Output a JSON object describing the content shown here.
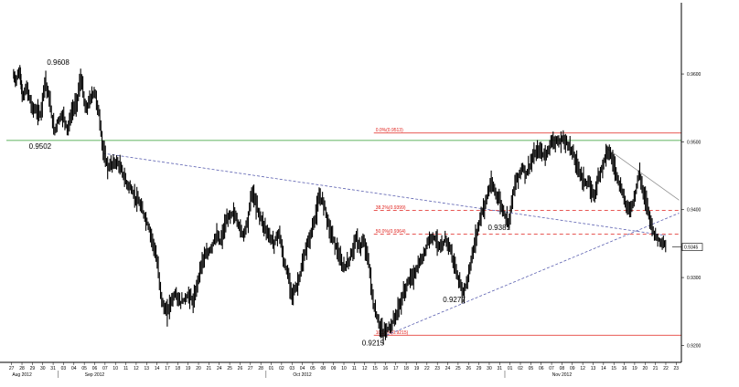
{
  "chart_data": {
    "type": "candlestick",
    "title": "",
    "xlabel": "",
    "ylabel": "",
    "ylim": [
      0.9175,
      0.9705
    ],
    "y_ticks": [
      "0.9200",
      "0.9300",
      "0.9400",
      "0.9500",
      "0.9600"
    ],
    "x_day_labels": [
      "27",
      "28",
      "29",
      "30",
      "31",
      "03",
      "04",
      "05",
      "06",
      "07",
      "10",
      "11",
      "12",
      "13",
      "14",
      "17",
      "18",
      "19",
      "20",
      "21",
      "24",
      "25",
      "26",
      "27",
      "28",
      "01",
      "02",
      "03",
      "04",
      "05",
      "08",
      "09",
      "10",
      "11",
      "12",
      "15",
      "16",
      "17",
      "18",
      "19",
      "22",
      "23",
      "24",
      "25",
      "26",
      "29",
      "30",
      "31",
      "01",
      "02",
      "05",
      "06",
      "07",
      "08",
      "09",
      "12",
      "13",
      "14",
      "15",
      "16",
      "19",
      "20",
      "21",
      "22",
      "23"
    ],
    "x_month_labels": [
      "Aug 2012",
      "Sep 2012",
      "Oct 2012",
      "Nov 2012"
    ],
    "close_path": [
      [
        0.9586,
        0.9598
      ],
      [
        1.5,
        0.9592
      ],
      [
        2.5,
        0.9604
      ],
      [
        3,
        0.9565
      ],
      [
        4,
        0.958
      ],
      [
        5,
        0.9552
      ],
      [
        6,
        0.9545
      ],
      [
        7,
        0.954
      ],
      [
        8,
        0.9592
      ],
      [
        9,
        0.956
      ],
      [
        10,
        0.9515
      ],
      [
        11,
        0.9533
      ],
      [
        12,
        0.954
      ],
      [
        13,
        0.9518
      ],
      [
        14,
        0.9545
      ],
      [
        15,
        0.9558
      ],
      [
        16,
        0.9595
      ],
      [
        17,
        0.9545
      ],
      [
        18,
        0.9563
      ],
      [
        19,
        0.9575
      ],
      [
        20,
        0.954
      ],
      [
        21,
        0.9483
      ],
      [
        22,
        0.9462
      ],
      [
        23,
        0.9468
      ],
      [
        24,
        0.947
      ],
      [
        25,
        0.9458
      ],
      [
        26,
        0.944
      ],
      [
        27,
        0.9432
      ],
      [
        28,
        0.9418
      ],
      [
        29,
        0.9408
      ],
      [
        30,
        0.9392
      ],
      [
        31,
        0.9375
      ],
      [
        32,
        0.9352
      ],
      [
        33,
        0.9318
      ],
      [
        34,
        0.9263
      ],
      [
        35,
        0.9247
      ],
      [
        36,
        0.9265
      ],
      [
        37,
        0.9277
      ],
      [
        38,
        0.9262
      ],
      [
        39,
        0.9268
      ],
      [
        40,
        0.9275
      ],
      [
        41,
        0.9262
      ],
      [
        42,
        0.9298
      ],
      [
        43,
        0.9327
      ],
      [
        44,
        0.9333
      ],
      [
        45,
        0.9345
      ],
      [
        46,
        0.9362
      ],
      [
        47,
        0.9352
      ],
      [
        48,
        0.9377
      ],
      [
        49,
        0.9392
      ],
      [
        50,
        0.9395
      ],
      [
        51,
        0.9378
      ],
      [
        52,
        0.9362
      ],
      [
        53,
        0.9383
      ],
      [
        54,
        0.9428
      ],
      [
        55,
        0.9405
      ],
      [
        56,
        0.9387
      ],
      [
        57,
        0.9372
      ],
      [
        58,
        0.9358
      ],
      [
        59,
        0.9352
      ],
      [
        60,
        0.9368
      ],
      [
        61,
        0.9325
      ],
      [
        62,
        0.9303
      ],
      [
        63,
        0.9275
      ],
      [
        64,
        0.9288
      ],
      [
        65,
        0.9312
      ],
      [
        66,
        0.9343
      ],
      [
        67,
        0.9362
      ],
      [
        68,
        0.9388
      ],
      [
        69,
        0.9418
      ],
      [
        70,
        0.941
      ],
      [
        71,
        0.9378
      ],
      [
        72,
        0.9358
      ],
      [
        73,
        0.934
      ],
      [
        74,
        0.9315
      ],
      [
        75,
        0.9318
      ],
      [
        76,
        0.9332
      ],
      [
        77,
        0.9358
      ],
      [
        78,
        0.9345
      ],
      [
        79,
        0.9352
      ],
      [
        80,
        0.9318
      ],
      [
        81,
        0.9258
      ],
      [
        82,
        0.9236
      ],
      [
        83,
        0.9218
      ],
      [
        84,
        0.9223
      ],
      [
        85,
        0.923
      ],
      [
        86,
        0.9245
      ],
      [
        87,
        0.9262
      ],
      [
        88,
        0.9283
      ],
      [
        89,
        0.9298
      ],
      [
        90,
        0.9303
      ],
      [
        91,
        0.9318
      ],
      [
        92,
        0.933
      ],
      [
        93,
        0.9352
      ],
      [
        94,
        0.9362
      ],
      [
        95,
        0.9355
      ],
      [
        96,
        0.934
      ],
      [
        97,
        0.9358
      ],
      [
        98,
        0.9343
      ],
      [
        99,
        0.9318
      ],
      [
        100,
        0.9292
      ],
      [
        101,
        0.9277
      ],
      [
        102,
        0.93
      ],
      [
        103,
        0.9335
      ],
      [
        104,
        0.9368
      ],
      [
        105,
        0.9395
      ],
      [
        106,
        0.9413
      ],
      [
        107,
        0.9438
      ],
      [
        108,
        0.9427
      ],
      [
        109,
        0.9413
      ],
      [
        110,
        0.9395
      ],
      [
        111,
        0.9381
      ],
      [
        112,
        0.9425
      ],
      [
        113,
        0.9448
      ],
      [
        114,
        0.9462
      ],
      [
        115,
        0.9453
      ],
      [
        116,
        0.947
      ],
      [
        117,
        0.9483
      ],
      [
        118,
        0.9488
      ],
      [
        119,
        0.9478
      ],
      [
        120,
        0.9492
      ],
      [
        121,
        0.9505
      ],
      [
        122,
        0.9497
      ],
      [
        123,
        0.9505
      ],
      [
        124,
        0.9498
      ],
      [
        125,
        0.9488
      ],
      [
        126,
        0.947
      ],
      [
        127,
        0.9453
      ],
      [
        128,
        0.944
      ],
      [
        129,
        0.9435
      ],
      [
        130,
        0.942
      ],
      [
        131,
        0.9448
      ],
      [
        132,
        0.9468
      ],
      [
        133,
        0.949
      ],
      [
        134,
        0.9475
      ],
      [
        135,
        0.9452
      ],
      [
        136,
        0.943
      ],
      [
        137,
        0.941
      ],
      [
        138,
        0.9398
      ],
      [
        139,
        0.9418
      ],
      [
        140,
        0.9455
      ],
      [
        141,
        0.9425
      ],
      [
        142,
        0.9402
      ],
      [
        143,
        0.937
      ],
      [
        144,
        0.9358
      ],
      [
        145,
        0.9352
      ],
      [
        146,
        0.9345
      ]
    ],
    "annotations": [
      {
        "label": "0.9608",
        "price": 0.9608
      },
      {
        "label": "0.9502",
        "price": 0.9502
      },
      {
        "label": "0.9381",
        "price": 0.9381
      },
      {
        "label": "0.9277",
        "price": 0.9277
      },
      {
        "label": "0.9215",
        "price": 0.9215
      }
    ],
    "horizontal_lines": [
      {
        "price": 0.9502,
        "color": "#2e9b2e",
        "style": "solid"
      }
    ],
    "fibonacci": [
      {
        "label": "0.0%(0.9513)",
        "price": 0.9513,
        "style": "solid"
      },
      {
        "label": "38.2%(0.9399)",
        "price": 0.9399,
        "style": "dashed"
      },
      {
        "label": "50.0%(0.9364)",
        "price": 0.9364,
        "style": "dashed"
      },
      {
        "label": "100.0%(0.9215)",
        "price": 0.9215,
        "style": "solid"
      }
    ],
    "trendlines": [
      {
        "from": [
          21,
          0.9483
        ],
        "to": [
          146,
          0.9362
        ],
        "color": "#5a5fb0",
        "style": "dashed"
      },
      {
        "from": [
          84,
          0.9215
        ],
        "to": [
          149,
          0.9395
        ],
        "color": "#5a5fb0",
        "style": "dashed"
      },
      {
        "from": [
          133,
          0.949
        ],
        "to": [
          149,
          0.9414
        ],
        "color": "#909090",
        "style": "solid"
      }
    ],
    "current_price": "0.9345",
    "colors": {
      "candles": "#000000",
      "fib": "#e0201b",
      "support": "#2e9b2e",
      "trend": "#5a5fb0",
      "channel": "#909090",
      "grid": "#c8c8c8"
    }
  }
}
